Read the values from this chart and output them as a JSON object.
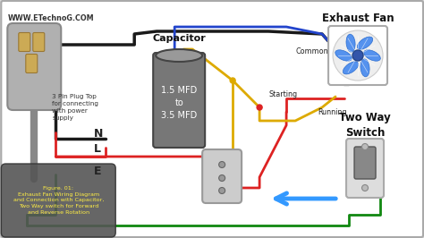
{
  "bg_color": "#d8d8d8",
  "fig_width": 4.74,
  "fig_height": 2.66,
  "website": "WWW.ETechnoG.COM",
  "capacitor_label": "Capacitor",
  "capacitor_rating": "1.5 MFD\nto\n3.5 MFD",
  "plug_label": "3 Pin Plug Top\nfor connecting\nwith power\nsupply",
  "fan_label": "Exhaust Fan",
  "switch_label": "Two Way\nSwitch",
  "figure_caption": "Figure. 01:\nExhaust Fan Wiring Diagram\nand Connection with Capacitor,\nTwo Way switch for Forward\nand Reverse Rotation",
  "n_label": "N",
  "l_label": "L",
  "e_label": "E",
  "common_label": "Common",
  "starting_label": "Starting",
  "running_label": "Running",
  "wire_black": "#1a1a1a",
  "wire_red": "#dd2222",
  "wire_yellow": "#ddaa00",
  "wire_blue": "#2244cc",
  "wire_green": "#118811",
  "wire_gray": "#888888",
  "node_color": "#dd2222",
  "cap_body_color": "#777777",
  "cap_top_color": "#999999",
  "plug_body_color": "#b0b0b0",
  "plug_pin_color": "#ccaa55",
  "fan_bg_color": "#ffffff",
  "fan_blade_color": "#4488ee",
  "fan_hub_color": "#3355aa",
  "switch_body_color": "#dddddd",
  "switch_toggle_color": "#888888",
  "socket_body_color": "#cccccc",
  "caption_box_color": "#555555",
  "caption_text_color": "#ffee44",
  "arrow_color": "#3399ff"
}
